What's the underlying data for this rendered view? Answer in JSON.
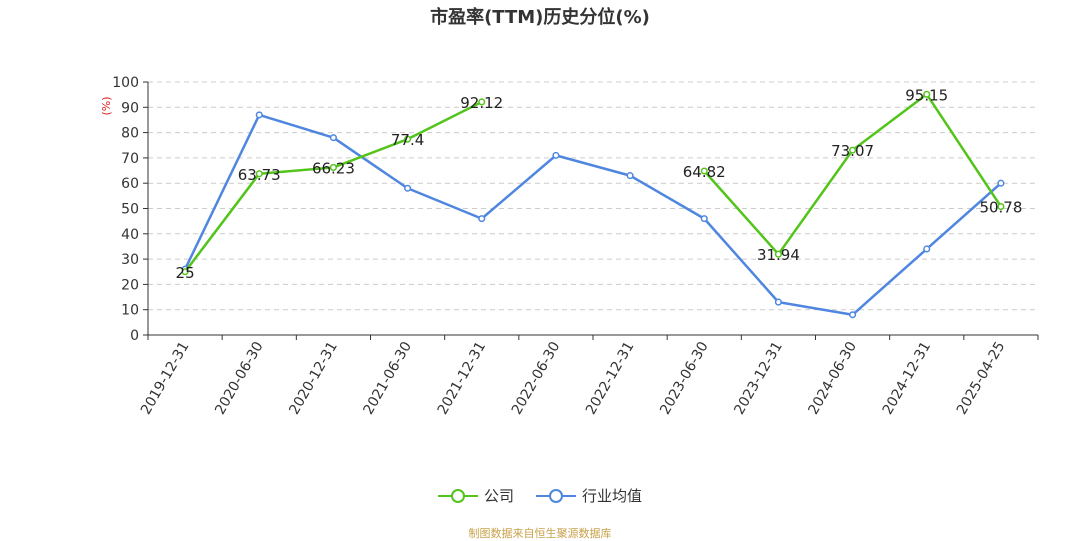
{
  "chart_data": {
    "type": "line",
    "title": "市盈率(TTM)历史分位(%)",
    "ylabel": "(%)",
    "ylim": [
      0,
      100
    ],
    "yticks": [
      0,
      10,
      20,
      30,
      40,
      50,
      60,
      70,
      80,
      90,
      100
    ],
    "categories": [
      "2019-12-31",
      "2020-06-30",
      "2020-12-31",
      "2021-06-30",
      "2021-12-31",
      "2022-06-30",
      "2022-12-31",
      "2023-06-30",
      "2023-12-31",
      "2024-06-30",
      "2024-12-31",
      "2025-04-25"
    ],
    "grid": true,
    "legend_position": "bottom",
    "series": [
      {
        "name": "公司",
        "color": "#52c41a",
        "values": [
          25,
          63.73,
          66.23,
          77.4,
          92.12,
          null,
          null,
          64.82,
          31.94,
          73.07,
          95.15,
          50.78
        ],
        "labels": [
          "25",
          "63.73",
          "66.23",
          "77.4",
          "92.12",
          "",
          "",
          "64.82",
          "31.94",
          "73.07",
          "95.15",
          "50.78"
        ]
      },
      {
        "name": "行业均值",
        "color": "#4f86e0",
        "values": [
          26,
          87,
          78,
          58,
          46,
          71,
          63,
          46,
          13,
          8,
          34,
          60
        ]
      }
    ]
  },
  "source": "制图数据来自恒生聚源数据库"
}
